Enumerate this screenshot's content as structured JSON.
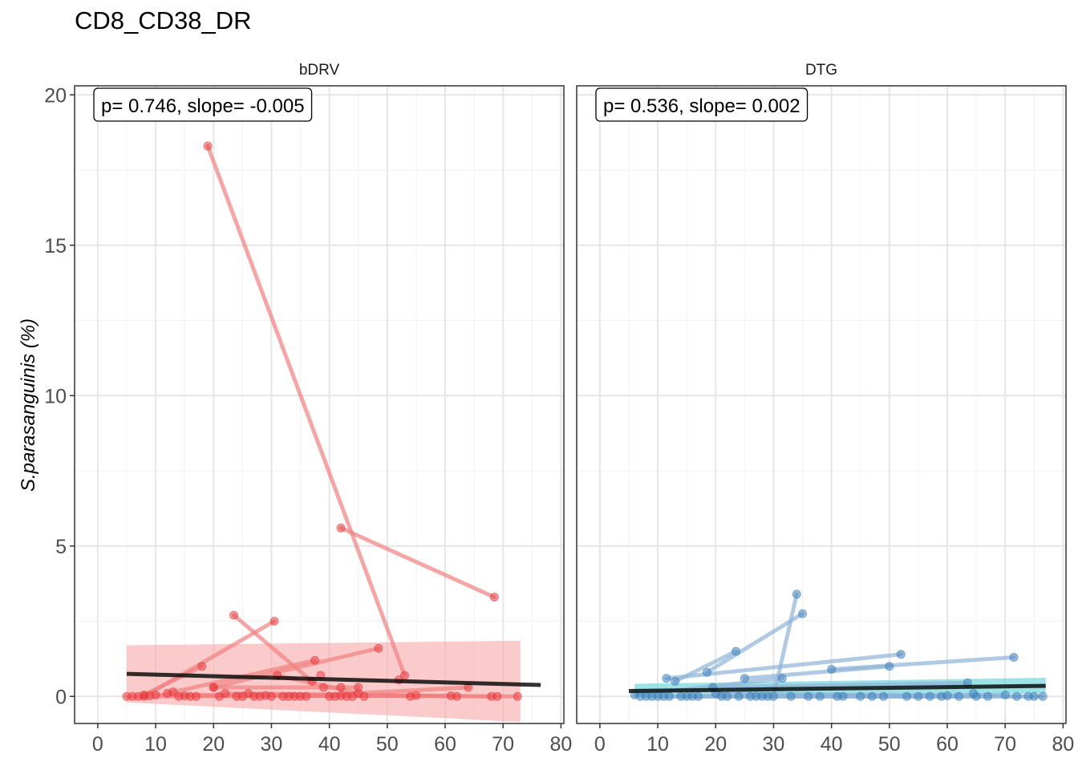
{
  "chart_data": {
    "type": "scatter",
    "title": "CD8_CD38_DR",
    "xlabel": "",
    "ylabel": "S.parasanguinis (%)",
    "xlim": [
      -4,
      80.5
    ],
    "ylim": [
      -0.9,
      20.3
    ],
    "xticks": [
      0,
      10,
      20,
      30,
      40,
      50,
      60,
      70,
      80
    ],
    "yticks": [
      0,
      5,
      10,
      15,
      20
    ],
    "grid": true,
    "legend": "none",
    "panels": [
      {
        "name": "bDRV",
        "annotation": "p= 0.746, slope= -0.005",
        "point_color": "#e8383d",
        "line_color": "#f08080",
        "ribbon_color": "#f8a9a9",
        "fit_color": "#000000",
        "fit": {
          "x": [
            5,
            76.5
          ],
          "y": [
            0.75,
            0.38
          ]
        },
        "ribbon": {
          "x": [
            5,
            73
          ],
          "upper": [
            1.7,
            1.85
          ],
          "lower": [
            -0.2,
            -0.85
          ]
        },
        "segments": [
          [
            [
              19,
              18.3
            ],
            [
              53,
              0.7
            ]
          ],
          [
            [
              42,
              5.6
            ],
            [
              68.5,
              3.3
            ]
          ],
          [
            [
              23.5,
              2.7
            ],
            [
              37,
              0.5
            ]
          ],
          [
            [
              30.5,
              2.5
            ],
            [
              8,
              0.0
            ]
          ],
          [
            [
              18,
              1.0
            ],
            [
              8,
              0.05
            ]
          ],
          [
            [
              48.5,
              1.6
            ],
            [
              20,
              0.3
            ]
          ],
          [
            [
              37.5,
              1.2
            ],
            [
              12,
              0.1
            ]
          ],
          [
            [
              31,
              0.7
            ],
            [
              45,
              0.1
            ]
          ],
          [
            [
              20,
              0.3
            ],
            [
              45,
              0.3
            ]
          ],
          [
            [
              5,
              0.0
            ],
            [
              42,
              0.02
            ]
          ],
          [
            [
              10,
              0.05
            ],
            [
              55,
              0.03
            ]
          ],
          [
            [
              15,
              0.02
            ],
            [
              61,
              0.02
            ]
          ],
          [
            [
              22,
              0.1
            ],
            [
              68,
              0.0
            ]
          ],
          [
            [
              29,
              0.03
            ],
            [
              72.5,
              0.0
            ]
          ],
          [
            [
              35,
              0.0
            ],
            [
              64,
              0.3
            ]
          ]
        ],
        "extra_points": [
          [
            6,
            0.0
          ],
          [
            7,
            0.0
          ],
          [
            9,
            0.02
          ],
          [
            13,
            0.15
          ],
          [
            14,
            0.0
          ],
          [
            16,
            0.0
          ],
          [
            17,
            0.0
          ],
          [
            21,
            0.0
          ],
          [
            24,
            0.0
          ],
          [
            25,
            0.0
          ],
          [
            26,
            0.1
          ],
          [
            27,
            0.0
          ],
          [
            28,
            0.0
          ],
          [
            30,
            0.0
          ],
          [
            32,
            0.0
          ],
          [
            33,
            0.0
          ],
          [
            34,
            0.0
          ],
          [
            36,
            0.0
          ],
          [
            38.5,
            0.7
          ],
          [
            39,
            0.3
          ],
          [
            40,
            0.0
          ],
          [
            41,
            0.0
          ],
          [
            42,
            0.3
          ],
          [
            43,
            0.0
          ],
          [
            44,
            0.0
          ],
          [
            46,
            0.0
          ],
          [
            52,
            0.55
          ],
          [
            54,
            0.0
          ],
          [
            62,
            0.0
          ],
          [
            69,
            0.0
          ]
        ]
      },
      {
        "name": "DTG",
        "annotation": "p= 0.536, slope= 0.002",
        "point_color": "#3d7fb8",
        "line_color": "#8fb4d8",
        "ribbon_color": "#5ccfd6",
        "fit_color": "#000000",
        "fit": {
          "x": [
            5,
            77
          ],
          "y": [
            0.18,
            0.35
          ]
        },
        "ribbon": {
          "x": [
            6,
            77
          ],
          "upper": [
            0.42,
            0.62
          ],
          "lower": [
            -0.05,
            0.1
          ]
        },
        "segments": [
          [
            [
              34,
              3.4
            ],
            [
              30,
              0.0
            ]
          ],
          [
            [
              35,
              2.75
            ],
            [
              18.5,
              0.8
            ]
          ],
          [
            [
              23.5,
              1.5
            ],
            [
              13,
              0.5
            ]
          ],
          [
            [
              52,
              1.4
            ],
            [
              11.5,
              0.6
            ]
          ],
          [
            [
              71.5,
              1.3
            ],
            [
              40,
              0.9
            ]
          ],
          [
            [
              50,
              1.0
            ],
            [
              25,
              0.6
            ]
          ],
          [
            [
              31.5,
              0.6
            ],
            [
              6,
              0.05
            ]
          ],
          [
            [
              19.5,
              0.3
            ],
            [
              63.5,
              0.45
            ]
          ],
          [
            [
              8,
              0.0
            ],
            [
              65,
              0.0
            ]
          ],
          [
            [
              10,
              0.0
            ],
            [
              76.5,
              0.0
            ]
          ],
          [
            [
              15,
              0.0
            ],
            [
              70,
              0.05
            ]
          ],
          [
            [
              20,
              0.1
            ],
            [
              60,
              0.02
            ]
          ],
          [
            [
              28,
              0.0
            ],
            [
              75,
              0.0
            ]
          ]
        ],
        "extra_points": [
          [
            7,
            0.0
          ],
          [
            9,
            0.0
          ],
          [
            11,
            0.0
          ],
          [
            12,
            0.0
          ],
          [
            14,
            0.0
          ],
          [
            16,
            0.0
          ],
          [
            17,
            0.0
          ],
          [
            21,
            0.0
          ],
          [
            22,
            0.0
          ],
          [
            24,
            0.0
          ],
          [
            26,
            0.0
          ],
          [
            27,
            0.0
          ],
          [
            29,
            0.0
          ],
          [
            33,
            0.0
          ],
          [
            36,
            0.0
          ],
          [
            38,
            0.0
          ],
          [
            41,
            0.0
          ],
          [
            42,
            0.0
          ],
          [
            45,
            0.0
          ],
          [
            47,
            0.0
          ],
          [
            49,
            0.0
          ],
          [
            53,
            0.0
          ],
          [
            55,
            0.0
          ],
          [
            57,
            0.0
          ],
          [
            59,
            0.0
          ],
          [
            62,
            0.0
          ],
          [
            64.5,
            0.1
          ],
          [
            67,
            0.0
          ],
          [
            72,
            0.0
          ],
          [
            74,
            0.0
          ]
        ]
      }
    ]
  }
}
